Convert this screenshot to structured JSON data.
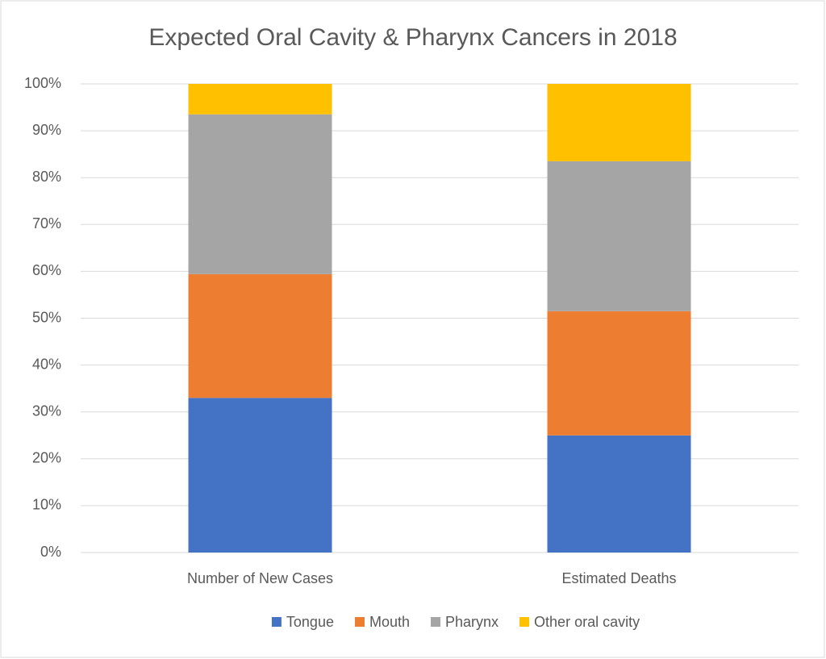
{
  "chart_data": {
    "type": "stacked_bar",
    "title": "Expected Oral Cavity & Pharynx Cancers in 2018",
    "categories": [
      "Number of New Cases",
      "Estimated Deaths"
    ],
    "series": [
      {
        "name": "Tongue",
        "color": "#4472c4",
        "values": [
          33.0,
          25.0
        ]
      },
      {
        "name": "Mouth",
        "color": "#ed7d31",
        "values": [
          26.4,
          26.5
        ]
      },
      {
        "name": "Pharynx",
        "color": "#a5a5a5",
        "values": [
          34.1,
          32.0
        ]
      },
      {
        "name": "Other oral cavity",
        "color": "#ffc000",
        "values": [
          6.5,
          16.5
        ]
      }
    ],
    "ylim": [
      0,
      100
    ],
    "yticks": [
      {
        "value": 0,
        "label": "0%"
      },
      {
        "value": 10,
        "label": "10%"
      },
      {
        "value": 20,
        "label": "20%"
      },
      {
        "value": 30,
        "label": "30%"
      },
      {
        "value": 40,
        "label": "40%"
      },
      {
        "value": 50,
        "label": "50%"
      },
      {
        "value": 60,
        "label": "60%"
      },
      {
        "value": 70,
        "label": "70%"
      },
      {
        "value": 80,
        "label": "80%"
      },
      {
        "value": 90,
        "label": "90%"
      },
      {
        "value": 100,
        "label": "100%"
      }
    ],
    "grid": true,
    "legend": "bottom"
  }
}
